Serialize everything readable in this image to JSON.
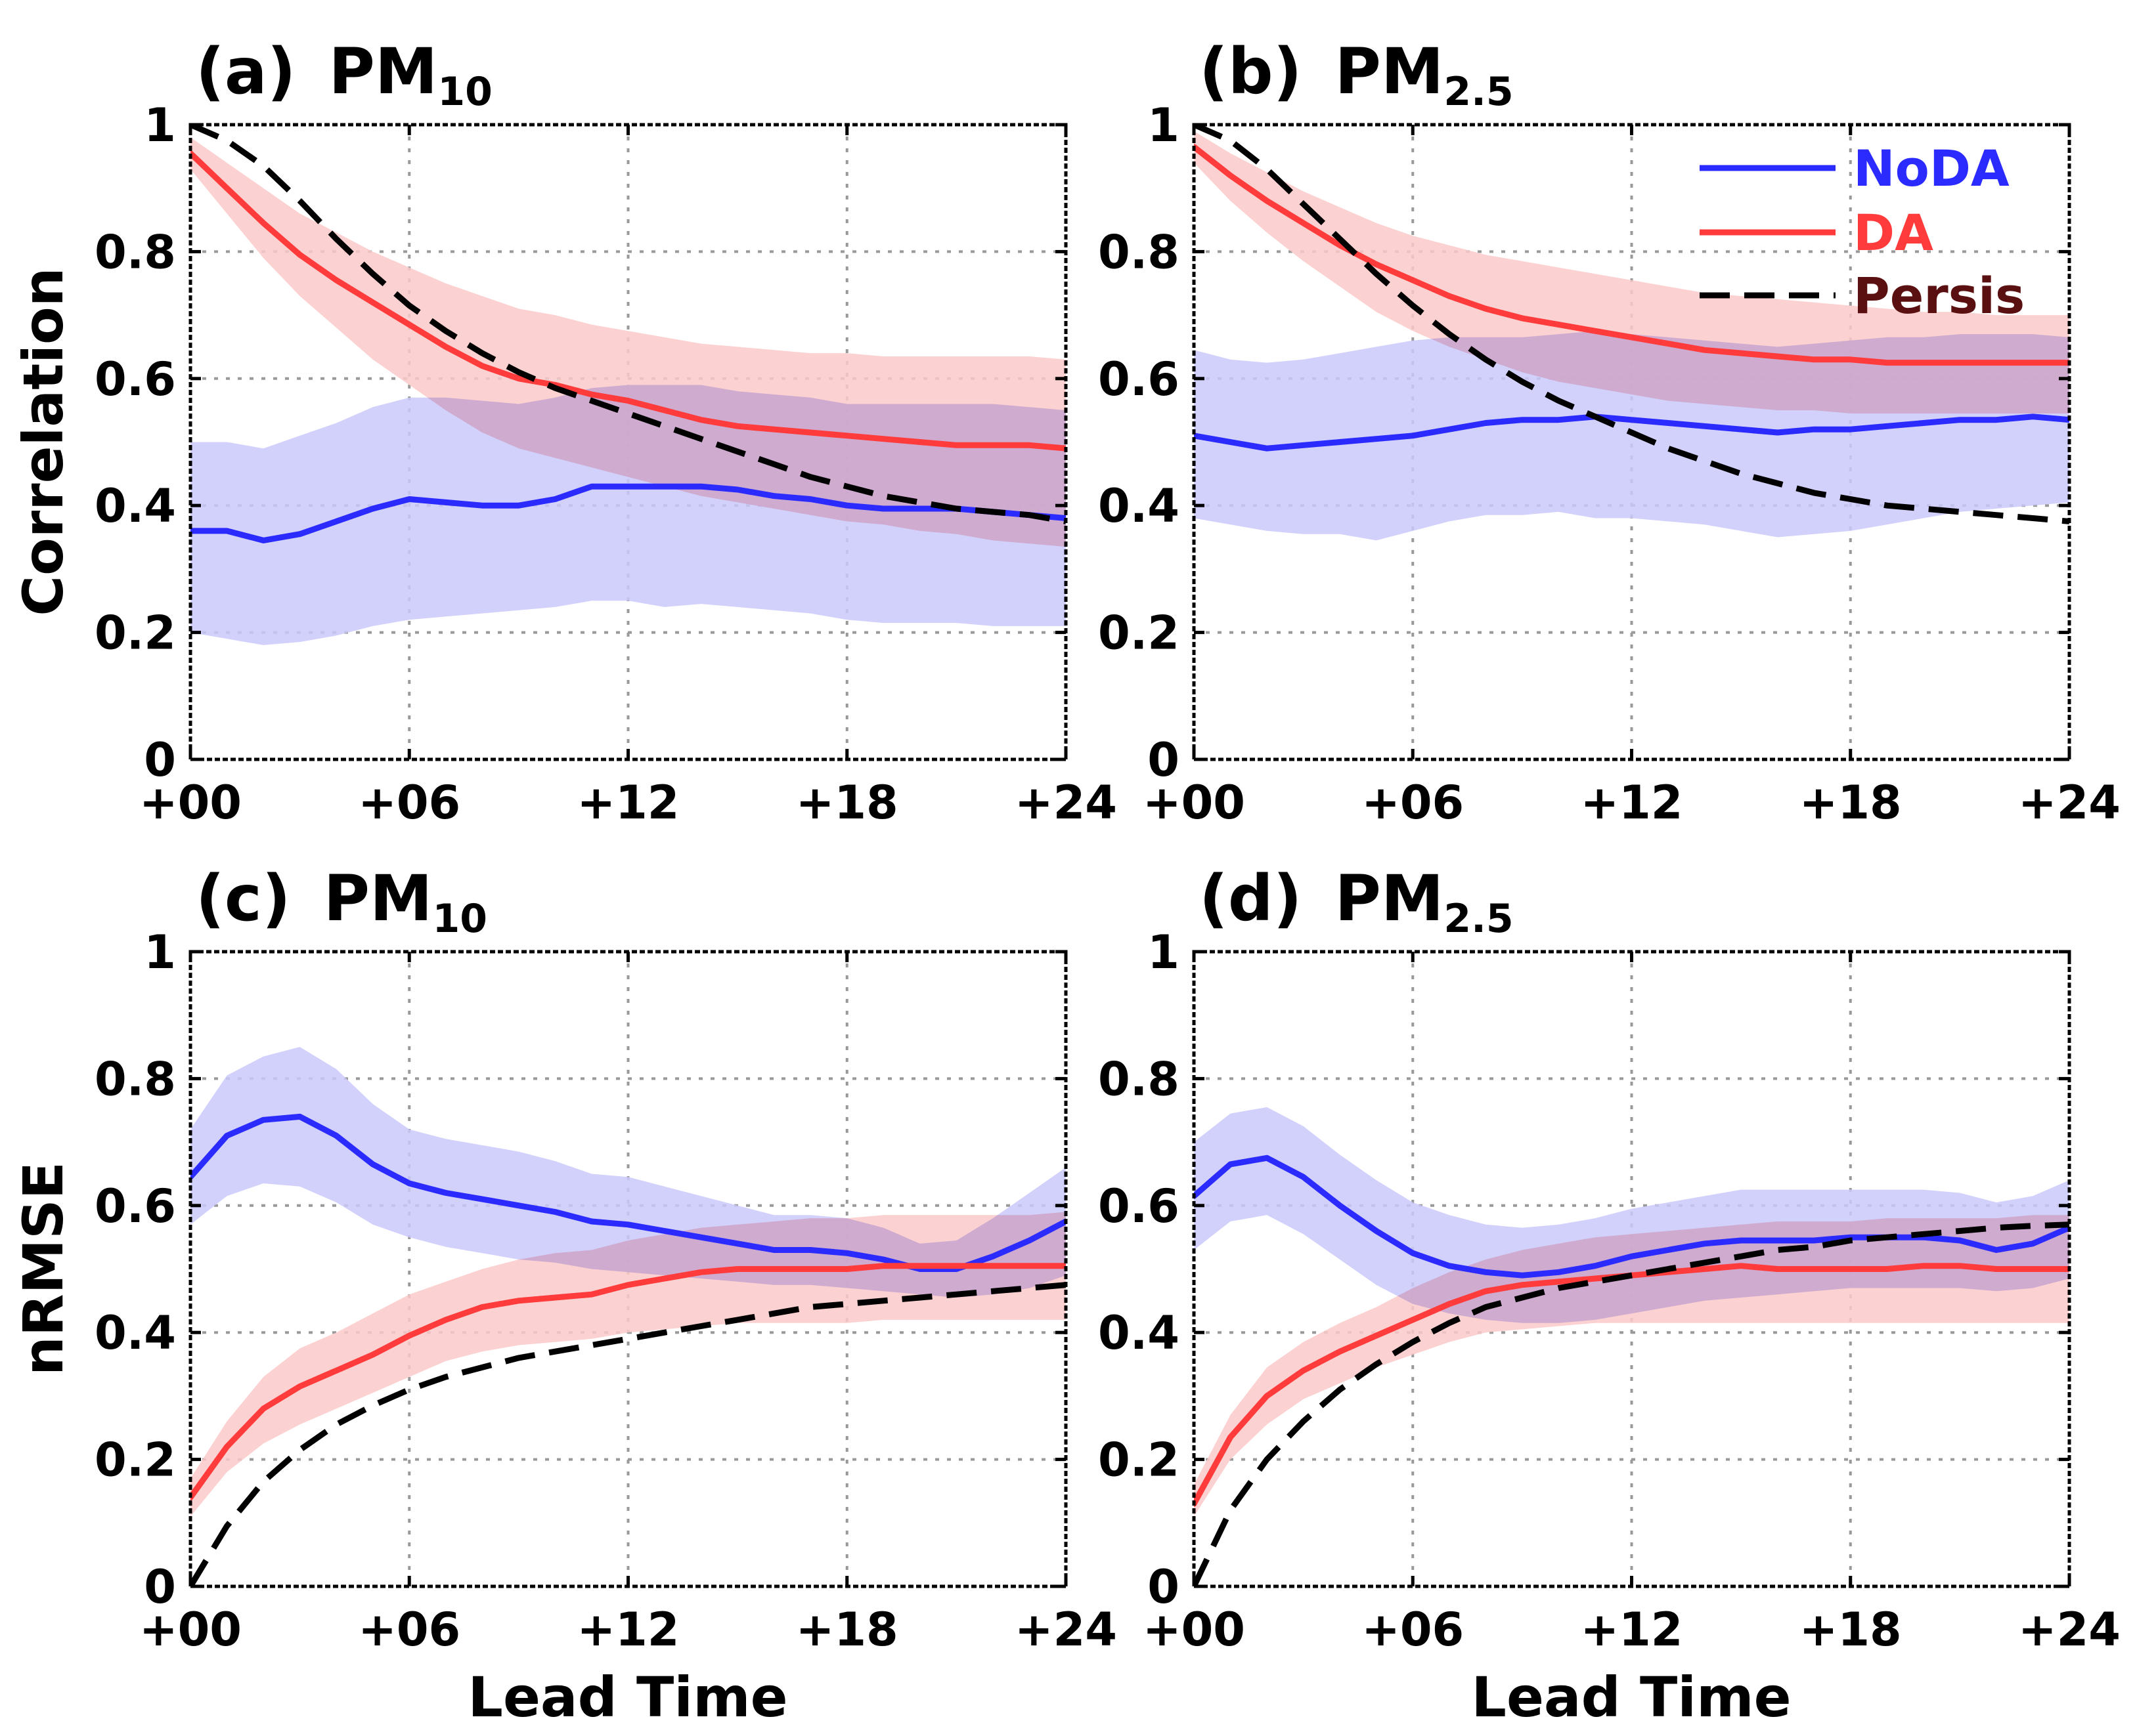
{
  "figure": {
    "xlabel": "Lead Time"
  },
  "legend": {
    "items": [
      {
        "name": "NoDA",
        "color": "#2b2bff"
      },
      {
        "name": "DA",
        "color": "#ff3b3b"
      },
      {
        "name": "Persis",
        "color": "#000000"
      }
    ]
  },
  "colors": {
    "noda_line": "#2b2bff",
    "noda_band": "#c9c9fb",
    "da_line": "#ff3b3b",
    "da_band": "#fbc9c9",
    "overlap_band": "#c2a6dc",
    "persis_line": "#000000",
    "grid": "#9a9a9a"
  },
  "chart_data": [
    {
      "panel": "a",
      "type": "line",
      "title_prefix": "(a)",
      "title_main": "PM",
      "title_sub": "10",
      "ylabel": "Correlation",
      "xlabel": "",
      "xlim": [
        0,
        24
      ],
      "ylim": [
        0,
        1
      ],
      "xticks": [
        0,
        6,
        12,
        18,
        24
      ],
      "xtick_labels": [
        "+00",
        "+06",
        "+12",
        "+18",
        "+24"
      ],
      "yticks": [
        0,
        0.2,
        0.4,
        0.6,
        0.8,
        1
      ],
      "ytick_labels": [
        "0",
        "0.2",
        "0.4",
        "0.6",
        "0.8",
        "1"
      ],
      "x": [
        0,
        1,
        2,
        3,
        4,
        5,
        6,
        7,
        8,
        9,
        10,
        11,
        12,
        13,
        14,
        15,
        16,
        17,
        18,
        19,
        20,
        21,
        22,
        23,
        24
      ],
      "series": [
        {
          "name": "NoDA",
          "values": [
            0.36,
            0.36,
            0.345,
            0.355,
            0.375,
            0.395,
            0.41,
            0.405,
            0.4,
            0.4,
            0.41,
            0.43,
            0.43,
            0.43,
            0.43,
            0.425,
            0.415,
            0.41,
            0.4,
            0.395,
            0.395,
            0.395,
            0.39,
            0.385,
            0.38
          ],
          "lower": [
            0.2,
            0.19,
            0.18,
            0.185,
            0.195,
            0.21,
            0.22,
            0.225,
            0.23,
            0.235,
            0.24,
            0.25,
            0.25,
            0.24,
            0.245,
            0.24,
            0.235,
            0.23,
            0.22,
            0.215,
            0.215,
            0.215,
            0.21,
            0.21,
            0.21
          ],
          "upper": [
            0.5,
            0.5,
            0.49,
            0.51,
            0.53,
            0.555,
            0.57,
            0.57,
            0.565,
            0.56,
            0.57,
            0.585,
            0.59,
            0.59,
            0.59,
            0.58,
            0.575,
            0.57,
            0.56,
            0.56,
            0.56,
            0.56,
            0.56,
            0.555,
            0.55
          ]
        },
        {
          "name": "DA",
          "values": [
            0.955,
            0.9,
            0.845,
            0.795,
            0.755,
            0.72,
            0.685,
            0.65,
            0.62,
            0.6,
            0.59,
            0.575,
            0.565,
            0.55,
            0.535,
            0.525,
            0.52,
            0.515,
            0.51,
            0.505,
            0.5,
            0.495,
            0.495,
            0.495,
            0.49
          ],
          "lower": [
            0.93,
            0.86,
            0.79,
            0.73,
            0.68,
            0.63,
            0.59,
            0.55,
            0.515,
            0.49,
            0.475,
            0.46,
            0.445,
            0.43,
            0.415,
            0.405,
            0.395,
            0.385,
            0.375,
            0.37,
            0.36,
            0.355,
            0.345,
            0.34,
            0.335
          ],
          "upper": [
            0.98,
            0.94,
            0.9,
            0.86,
            0.83,
            0.8,
            0.775,
            0.75,
            0.73,
            0.71,
            0.7,
            0.685,
            0.675,
            0.665,
            0.655,
            0.65,
            0.645,
            0.64,
            0.64,
            0.635,
            0.635,
            0.635,
            0.635,
            0.635,
            0.63
          ]
        },
        {
          "name": "Persis",
          "values": [
            1.0,
            0.975,
            0.935,
            0.88,
            0.82,
            0.765,
            0.715,
            0.675,
            0.64,
            0.61,
            0.585,
            0.565,
            0.545,
            0.525,
            0.505,
            0.485,
            0.465,
            0.445,
            0.43,
            0.415,
            0.405,
            0.395,
            0.39,
            0.385,
            0.375
          ]
        }
      ]
    },
    {
      "panel": "b",
      "type": "line",
      "title_prefix": "(b)",
      "title_main": "PM",
      "title_sub": "2.5",
      "ylabel": "",
      "xlabel": "",
      "xlim": [
        0,
        24
      ],
      "ylim": [
        0,
        1
      ],
      "xticks": [
        0,
        6,
        12,
        18,
        24
      ],
      "xtick_labels": [
        "+00",
        "+06",
        "+12",
        "+18",
        "+24"
      ],
      "yticks": [
        0,
        0.2,
        0.4,
        0.6,
        0.8,
        1
      ],
      "ytick_labels": [
        "0",
        "0.2",
        "0.4",
        "0.6",
        "0.8",
        "1"
      ],
      "x": [
        0,
        1,
        2,
        3,
        4,
        5,
        6,
        7,
        8,
        9,
        10,
        11,
        12,
        13,
        14,
        15,
        16,
        17,
        18,
        19,
        20,
        21,
        22,
        23,
        24
      ],
      "series": [
        {
          "name": "NoDA",
          "values": [
            0.51,
            0.5,
            0.49,
            0.495,
            0.5,
            0.505,
            0.51,
            0.52,
            0.53,
            0.535,
            0.535,
            0.54,
            0.535,
            0.53,
            0.525,
            0.52,
            0.515,
            0.52,
            0.52,
            0.525,
            0.53,
            0.535,
            0.535,
            0.54,
            0.535
          ],
          "lower": [
            0.38,
            0.37,
            0.36,
            0.355,
            0.355,
            0.345,
            0.36,
            0.375,
            0.385,
            0.385,
            0.39,
            0.38,
            0.38,
            0.375,
            0.37,
            0.36,
            0.35,
            0.355,
            0.36,
            0.37,
            0.38,
            0.39,
            0.395,
            0.4,
            0.405
          ],
          "upper": [
            0.645,
            0.63,
            0.625,
            0.63,
            0.64,
            0.65,
            0.66,
            0.665,
            0.665,
            0.665,
            0.67,
            0.675,
            0.67,
            0.665,
            0.66,
            0.655,
            0.65,
            0.655,
            0.66,
            0.665,
            0.665,
            0.67,
            0.67,
            0.67,
            0.665
          ]
        },
        {
          "name": "DA",
          "values": [
            0.965,
            0.92,
            0.88,
            0.845,
            0.81,
            0.78,
            0.755,
            0.73,
            0.71,
            0.695,
            0.685,
            0.675,
            0.665,
            0.655,
            0.645,
            0.64,
            0.635,
            0.63,
            0.63,
            0.625,
            0.625,
            0.625,
            0.625,
            0.625,
            0.625
          ],
          "lower": [
            0.94,
            0.88,
            0.83,
            0.785,
            0.745,
            0.705,
            0.675,
            0.65,
            0.63,
            0.61,
            0.595,
            0.585,
            0.575,
            0.565,
            0.56,
            0.555,
            0.55,
            0.55,
            0.545,
            0.545,
            0.545,
            0.545,
            0.545,
            0.545,
            0.545
          ],
          "upper": [
            0.99,
            0.955,
            0.925,
            0.895,
            0.87,
            0.845,
            0.825,
            0.81,
            0.795,
            0.785,
            0.775,
            0.765,
            0.755,
            0.745,
            0.735,
            0.73,
            0.725,
            0.72,
            0.715,
            0.71,
            0.705,
            0.705,
            0.7,
            0.7,
            0.7
          ]
        },
        {
          "name": "Persis",
          "values": [
            1.0,
            0.975,
            0.93,
            0.875,
            0.82,
            0.765,
            0.715,
            0.67,
            0.63,
            0.595,
            0.565,
            0.54,
            0.515,
            0.49,
            0.47,
            0.45,
            0.435,
            0.42,
            0.41,
            0.4,
            0.395,
            0.39,
            0.385,
            0.38,
            0.375
          ]
        }
      ]
    },
    {
      "panel": "c",
      "type": "line",
      "title_prefix": "(c)",
      "title_main": "PM",
      "title_sub": "10",
      "ylabel": "nRMSE",
      "xlabel": "Lead Time",
      "xlim": [
        0,
        24
      ],
      "ylim": [
        0,
        1
      ],
      "xticks": [
        0,
        6,
        12,
        18,
        24
      ],
      "xtick_labels": [
        "+00",
        "+06",
        "+12",
        "+18",
        "+24"
      ],
      "yticks": [
        0,
        0.2,
        0.4,
        0.6,
        0.8,
        1
      ],
      "ytick_labels": [
        "0",
        "0.2",
        "0.4",
        "0.6",
        "0.8",
        "1"
      ],
      "x": [
        0,
        1,
        2,
        3,
        4,
        5,
        6,
        7,
        8,
        9,
        10,
        11,
        12,
        13,
        14,
        15,
        16,
        17,
        18,
        19,
        20,
        21,
        22,
        23,
        24
      ],
      "series": [
        {
          "name": "NoDA",
          "values": [
            0.645,
            0.71,
            0.735,
            0.74,
            0.71,
            0.665,
            0.635,
            0.62,
            0.61,
            0.6,
            0.59,
            0.575,
            0.57,
            0.56,
            0.55,
            0.54,
            0.53,
            0.53,
            0.525,
            0.515,
            0.5,
            0.5,
            0.52,
            0.545,
            0.575
          ],
          "lower": [
            0.57,
            0.615,
            0.635,
            0.63,
            0.605,
            0.57,
            0.55,
            0.535,
            0.525,
            0.515,
            0.51,
            0.5,
            0.495,
            0.49,
            0.485,
            0.48,
            0.475,
            0.475,
            0.47,
            0.465,
            0.46,
            0.455,
            0.46,
            0.47,
            0.49
          ]
        },
        {
          "name": "DA",
          "values": [
            0.14,
            0.22,
            0.28,
            0.315,
            0.34,
            0.365,
            0.395,
            0.42,
            0.44,
            0.45,
            0.455,
            0.46,
            0.475,
            0.485,
            0.495,
            0.5,
            0.5,
            0.5,
            0.5,
            0.505,
            0.505,
            0.505,
            0.505,
            0.505,
            0.505
          ],
          "lower": [
            0.11,
            0.18,
            0.225,
            0.255,
            0.28,
            0.305,
            0.33,
            0.355,
            0.37,
            0.38,
            0.385,
            0.39,
            0.4,
            0.405,
            0.41,
            0.415,
            0.415,
            0.415,
            0.415,
            0.42,
            0.42,
            0.42,
            0.42,
            0.42,
            0.42
          ],
          "upper": [
            0.17,
            0.26,
            0.33,
            0.375,
            0.4,
            0.43,
            0.46,
            0.48,
            0.5,
            0.515,
            0.525,
            0.53,
            0.545,
            0.555,
            0.565,
            0.57,
            0.575,
            0.58,
            0.58,
            0.585,
            0.585,
            0.585,
            0.585,
            0.585,
            0.59
          ]
        },
        {
          "name": "Persis",
          "values": [
            0.0,
            0.095,
            0.165,
            0.215,
            0.255,
            0.285,
            0.31,
            0.33,
            0.345,
            0.36,
            0.37,
            0.38,
            0.39,
            0.4,
            0.41,
            0.42,
            0.43,
            0.44,
            0.445,
            0.45,
            0.455,
            0.46,
            0.465,
            0.47,
            0.475
          ]
        }
      ]
    },
    {
      "panel": "d",
      "type": "line",
      "title_prefix": "(d)",
      "title_main": "PM",
      "title_sub": "2.5",
      "ylabel": "",
      "xlabel": "Lead Time",
      "xlim": [
        0,
        24
      ],
      "ylim": [
        0,
        1
      ],
      "xticks": [
        0,
        6,
        12,
        18,
        24
      ],
      "xtick_labels": [
        "+00",
        "+06",
        "+12",
        "+18",
        "+24"
      ],
      "yticks": [
        0,
        0.2,
        0.4,
        0.6,
        0.8,
        1
      ],
      "ytick_labels": [
        "0",
        "0.2",
        "0.4",
        "0.6",
        "0.8",
        "1"
      ],
      "x": [
        0,
        1,
        2,
        3,
        4,
        5,
        6,
        7,
        8,
        9,
        10,
        11,
        12,
        13,
        14,
        15,
        16,
        17,
        18,
        19,
        20,
        21,
        22,
        23,
        24
      ],
      "series": [
        {
          "name": "NoDA",
          "values": [
            0.615,
            0.665,
            0.675,
            0.645,
            0.6,
            0.56,
            0.525,
            0.505,
            0.495,
            0.49,
            0.495,
            0.505,
            0.52,
            0.53,
            0.54,
            0.545,
            0.545,
            0.545,
            0.55,
            0.55,
            0.55,
            0.545,
            0.53,
            0.54,
            0.565
          ],
          "lower": [
            0.53,
            0.575,
            0.585,
            0.555,
            0.515,
            0.475,
            0.445,
            0.43,
            0.42,
            0.415,
            0.415,
            0.42,
            0.43,
            0.44,
            0.45,
            0.455,
            0.46,
            0.465,
            0.47,
            0.47,
            0.47,
            0.47,
            0.465,
            0.47,
            0.485
          ],
          "upper": [
            0.7,
            0.745,
            0.755,
            0.725,
            0.68,
            0.64,
            0.605,
            0.585,
            0.57,
            0.565,
            0.57,
            0.58,
            0.595,
            0.605,
            0.615,
            0.625,
            0.625,
            0.625,
            0.625,
            0.625,
            0.625,
            0.62,
            0.605,
            0.615,
            0.64
          ]
        },
        {
          "name": "DA",
          "values": [
            0.13,
            0.235,
            0.3,
            0.34,
            0.37,
            0.395,
            0.42,
            0.445,
            0.465,
            0.475,
            0.48,
            0.485,
            0.49,
            0.495,
            0.5,
            0.505,
            0.5,
            0.5,
            0.5,
            0.5,
            0.505,
            0.505,
            0.5,
            0.5,
            0.5
          ],
          "lower": [
            0.11,
            0.2,
            0.255,
            0.295,
            0.32,
            0.345,
            0.365,
            0.385,
            0.4,
            0.405,
            0.41,
            0.415,
            0.415,
            0.415,
            0.415,
            0.415,
            0.415,
            0.415,
            0.415,
            0.415,
            0.415,
            0.415,
            0.415,
            0.415,
            0.415
          ],
          "upper": [
            0.16,
            0.27,
            0.345,
            0.385,
            0.415,
            0.44,
            0.47,
            0.495,
            0.515,
            0.53,
            0.54,
            0.55,
            0.555,
            0.56,
            0.565,
            0.57,
            0.575,
            0.575,
            0.575,
            0.58,
            0.58,
            0.58,
            0.58,
            0.585,
            0.585
          ]
        },
        {
          "name": "Persis",
          "values": [
            0.0,
            0.12,
            0.2,
            0.26,
            0.31,
            0.35,
            0.385,
            0.415,
            0.44,
            0.455,
            0.47,
            0.48,
            0.49,
            0.5,
            0.51,
            0.52,
            0.53,
            0.535,
            0.545,
            0.55,
            0.555,
            0.56,
            0.565,
            0.568,
            0.57
          ]
        }
      ]
    }
  ]
}
